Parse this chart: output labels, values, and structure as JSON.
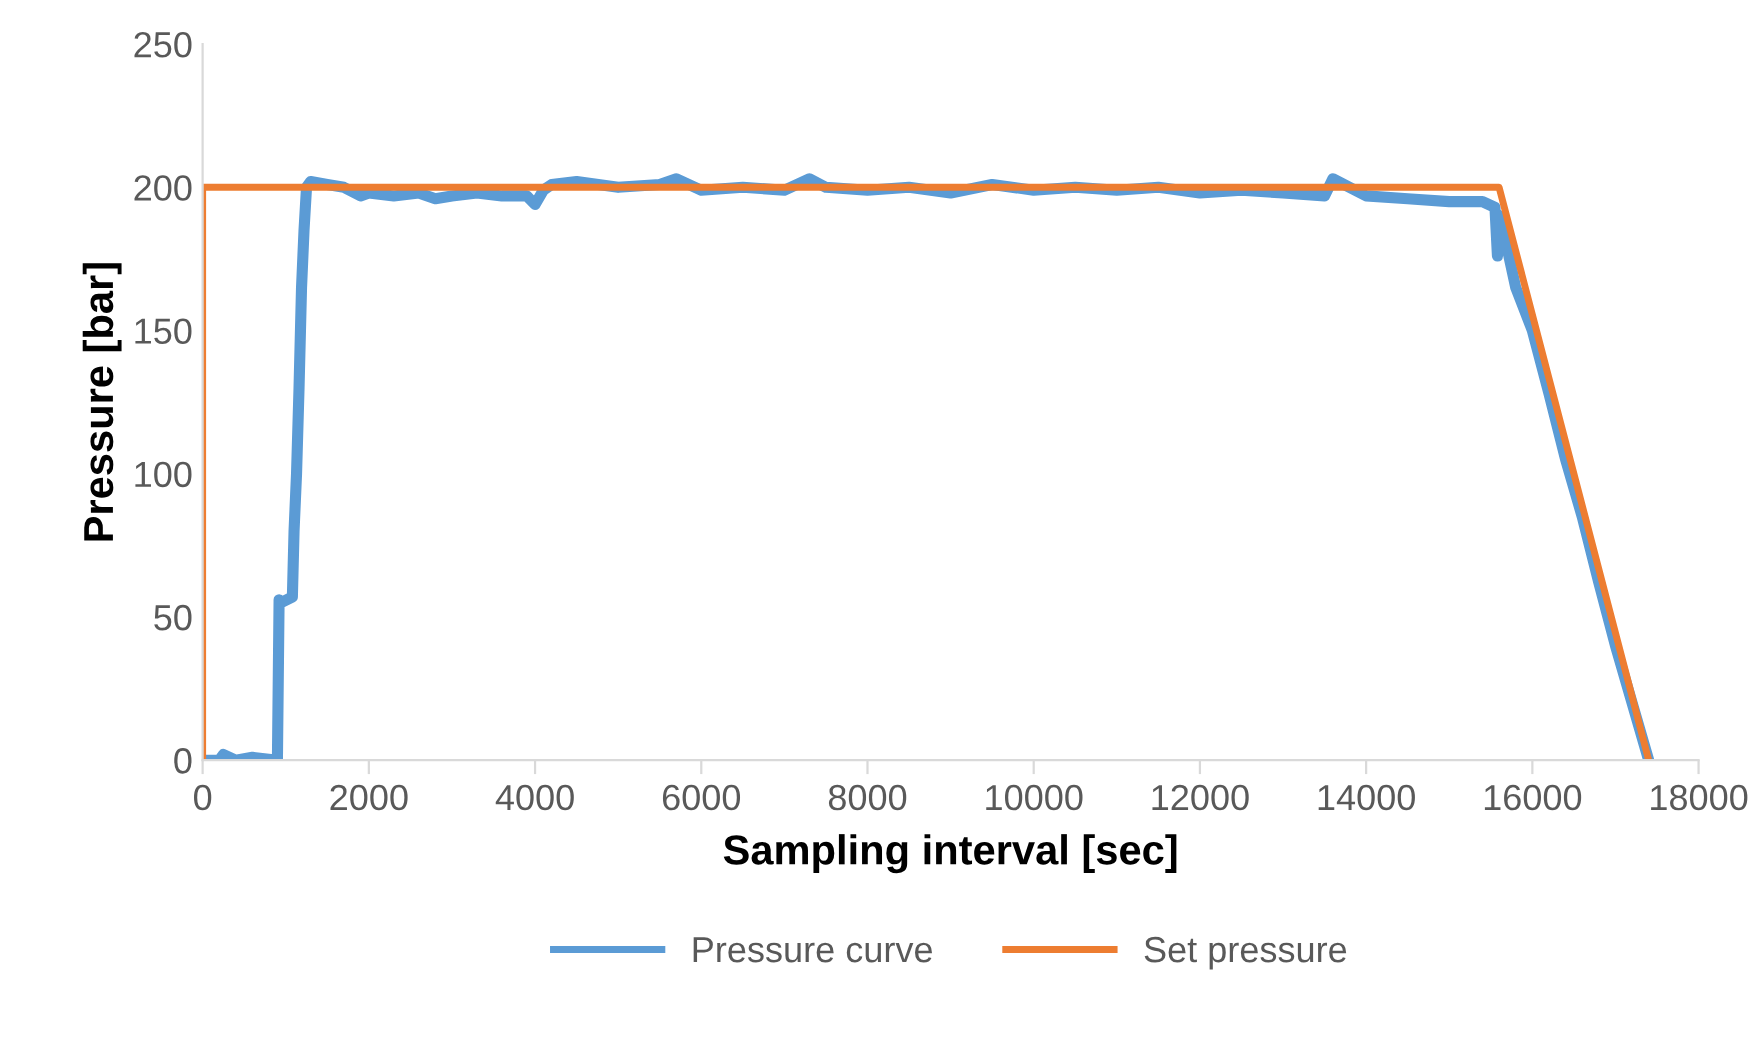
{
  "chart_data": {
    "type": "line",
    "xlabel": "Sampling interval [sec]",
    "ylabel": "Pressure [bar]",
    "xlim": [
      0,
      18000
    ],
    "xticks": [
      0,
      2000,
      4000,
      6000,
      8000,
      10000,
      12000,
      14000,
      16000,
      18000
    ],
    "ylim": [
      0,
      250
    ],
    "yticks": [
      0,
      50,
      100,
      150,
      200,
      250
    ],
    "grid": false,
    "legend": "bottom",
    "series": [
      {
        "name": "Pressure curve",
        "color": "#5b9bd5",
        "x": [
          0,
          200,
          250,
          400,
          600,
          900,
          920,
          940,
          1080,
          1100,
          1130,
          1160,
          1190,
          1220,
          1250,
          1300,
          1500,
          1700,
          1900,
          2000,
          2300,
          2600,
          2800,
          3000,
          3300,
          3600,
          3900,
          4000,
          4100,
          4200,
          4500,
          5000,
          5500,
          5700,
          6000,
          6500,
          7000,
          7300,
          7500,
          8000,
          8500,
          9000,
          9500,
          10000,
          10500,
          11000,
          11500,
          12000,
          12500,
          13000,
          13500,
          13600,
          14000,
          14500,
          15000,
          15400,
          15550,
          15580,
          15620,
          15650,
          15800,
          16000,
          16200,
          16400,
          16600,
          16800,
          17000,
          17200,
          17400
        ],
        "values": [
          0,
          0,
          2,
          0,
          1,
          0,
          56,
          55,
          57,
          80,
          100,
          130,
          165,
          185,
          200,
          202,
          201,
          200,
          197,
          198,
          197,
          198,
          196,
          197,
          198,
          197,
          197,
          194,
          199,
          201,
          202,
          200,
          201,
          203,
          199,
          200,
          199,
          203,
          200,
          199,
          200,
          198,
          201,
          199,
          200,
          199,
          200,
          198,
          199,
          198,
          197,
          203,
          197,
          196,
          195,
          195,
          193,
          176,
          190,
          185,
          165,
          150,
          128,
          105,
          85,
          62,
          40,
          20,
          0
        ]
      },
      {
        "name": "Set pressure",
        "color": "#ed7d31",
        "x": [
          0,
          0,
          15600,
          17400
        ],
        "values": [
          0,
          200,
          200,
          0
        ]
      }
    ]
  }
}
